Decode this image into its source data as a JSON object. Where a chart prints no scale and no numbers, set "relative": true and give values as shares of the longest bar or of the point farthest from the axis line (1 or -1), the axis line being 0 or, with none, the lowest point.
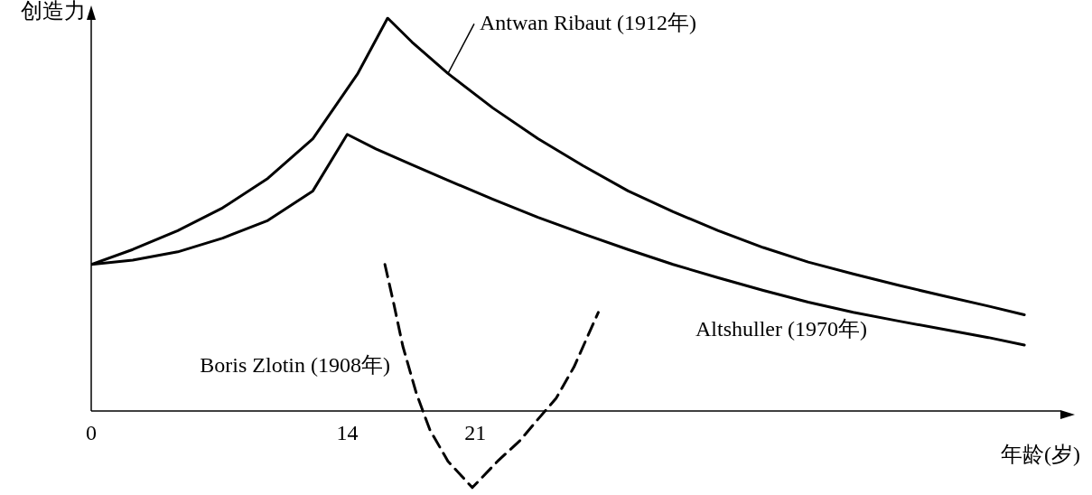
{
  "chart_data": {
    "type": "line",
    "relative": true,
    "xlabel": "年龄(岁)",
    "ylabel": "创造力",
    "xlim": [
      0,
      53
    ],
    "xticks": [
      0,
      14,
      21
    ],
    "marker": "none",
    "legend": false,
    "grid": false,
    "series": [
      {
        "name": "Antwan Ribaut (1912年)",
        "color": "#000000",
        "line_style": "solid",
        "x": [
          0,
          2.27,
          4.73,
          7.19,
          9.66,
          12.12,
          14.58,
          16.21,
          17.54,
          19.51,
          21.97,
          24.43,
          26.9,
          29.36,
          31.82,
          34.29,
          36.75,
          39.21,
          41.67,
          44.14,
          46.6,
          49.06,
          51.03
        ],
        "values": [
          0.373,
          0.411,
          0.459,
          0.517,
          0.592,
          0.693,
          0.859,
          1,
          0.939,
          0.859,
          0.771,
          0.693,
          0.624,
          0.56,
          0.507,
          0.459,
          0.416,
          0.379,
          0.349,
          0.32,
          0.293,
          0.267,
          0.245
        ]
      },
      {
        "name": "Altshuller (1970年)",
        "color": "#000000",
        "line_style": "solid",
        "x": [
          0,
          2.27,
          4.73,
          7.19,
          9.66,
          12.12,
          14,
          15.57,
          17.54,
          19.51,
          21.97,
          24.43,
          26.9,
          29.36,
          31.82,
          34.29,
          36.75,
          39.21,
          41.67,
          44.14,
          46.6,
          49.06,
          51.03
        ],
        "values": [
          0.373,
          0.384,
          0.405,
          0.44,
          0.485,
          0.56,
          0.704,
          0.667,
          0.627,
          0.587,
          0.539,
          0.493,
          0.451,
          0.411,
          0.373,
          0.339,
          0.307,
          0.277,
          0.251,
          0.229,
          0.208,
          0.187,
          0.168
        ]
      },
      {
        "name": "Boris Zlotin (1908年)",
        "color": "#000000",
        "line_style": "dashed",
        "x": [
          16.06,
          16.55,
          17.04,
          17.78,
          18.52,
          19.51,
          20.84,
          22.22,
          23.45,
          24.43,
          25.42,
          26.4,
          27.73
        ],
        "values": [
          0.373,
          0.272,
          0.165,
          0.045,
          -0.048,
          -0.128,
          -0.195,
          -0.128,
          -0.075,
          -0.021,
          0.032,
          0.112,
          0.251
        ]
      }
    ]
  }
}
